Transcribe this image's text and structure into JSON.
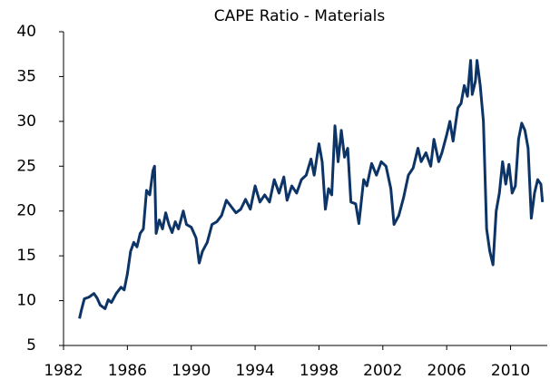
{
  "chart_data": {
    "type": "line",
    "title": "CAPE Ratio - Materials",
    "x": [
      1983.0,
      1983.1,
      1983.3,
      1983.6,
      1983.9,
      1984.1,
      1984.3,
      1984.6,
      1984.8,
      1985.0,
      1985.3,
      1985.6,
      1985.8,
      1986.0,
      1986.2,
      1986.4,
      1986.6,
      1986.8,
      1987.0,
      1987.2,
      1987.4,
      1987.6,
      1987.7,
      1987.8,
      1988.0,
      1988.2,
      1988.4,
      1988.6,
      1988.8,
      1989.0,
      1989.2,
      1989.5,
      1989.7,
      1990.0,
      1990.3,
      1990.5,
      1990.7,
      1991.0,
      1991.3,
      1991.6,
      1991.9,
      1992.2,
      1992.5,
      1992.8,
      1993.1,
      1993.4,
      1993.7,
      1994.0,
      1994.3,
      1994.6,
      1994.9,
      1995.2,
      1995.5,
      1995.8,
      1996.0,
      1996.3,
      1996.6,
      1996.9,
      1997.2,
      1997.5,
      1997.7,
      1998.0,
      1998.2,
      1998.4,
      1998.6,
      1998.8,
      1999.0,
      1999.2,
      1999.4,
      1999.6,
      1999.8,
      2000.0,
      2000.3,
      2000.5,
      2000.8,
      2001.0,
      2001.3,
      2001.6,
      2001.9,
      2002.2,
      2002.5,
      2002.7,
      2003.0,
      2003.3,
      2003.6,
      2003.9,
      2004.2,
      2004.4,
      2004.7,
      2005.0,
      2005.2,
      2005.5,
      2005.7,
      2006.0,
      2006.2,
      2006.4,
      2006.7,
      2006.9,
      2007.1,
      2007.3,
      2007.5,
      2007.6,
      2007.8,
      2007.9,
      2008.1,
      2008.3,
      2008.5,
      2008.7,
      2008.9,
      2009.1,
      2009.3,
      2009.5,
      2009.7,
      2009.9,
      2010.1,
      2010.3,
      2010.5,
      2010.7,
      2010.9,
      2011.1,
      2011.3,
      2011.5,
      2011.7,
      2011.9,
      2012.0
    ],
    "series": [
      {
        "color": "#0d3466",
        "values": [
          8.0,
          8.8,
          10.2,
          10.4,
          10.8,
          10.3,
          9.5,
          9.1,
          10.1,
          9.8,
          10.8,
          11.5,
          11.2,
          13.0,
          15.5,
          16.5,
          16.0,
          17.5,
          18.0,
          22.3,
          21.8,
          24.5,
          25.0,
          17.5,
          19.0,
          18.0,
          19.8,
          18.5,
          17.6,
          18.8,
          18.0,
          20.0,
          18.5,
          18.2,
          17.0,
          14.2,
          15.5,
          16.5,
          18.5,
          18.8,
          19.5,
          21.2,
          20.5,
          19.8,
          20.2,
          21.3,
          20.2,
          22.8,
          21.0,
          21.8,
          21.0,
          23.5,
          22.0,
          23.8,
          21.2,
          22.8,
          22.0,
          23.5,
          24.0,
          25.8,
          24.0,
          27.5,
          25.5,
          20.2,
          22.5,
          21.8,
          29.5,
          25.5,
          29.0,
          26.0,
          27.0,
          21.0,
          20.8,
          18.6,
          23.5,
          22.8,
          25.3,
          24.0,
          25.5,
          25.0,
          22.5,
          18.5,
          19.5,
          21.5,
          24.0,
          24.8,
          27.0,
          25.5,
          26.5,
          25.0,
          28.0,
          25.5,
          26.5,
          28.5,
          30.0,
          27.8,
          31.5,
          32.0,
          34.0,
          32.8,
          36.8,
          33.0,
          34.5,
          36.8,
          34.0,
          30.0,
          18.0,
          15.5,
          14.0,
          20.0,
          22.0,
          25.5,
          23.0,
          25.2,
          22.0,
          22.8,
          28.0,
          29.8,
          29.0,
          27.0,
          19.2,
          22.0,
          23.5,
          23.0,
          21.0
        ]
      }
    ],
    "xlim": [
      1982,
      2012.3
    ],
    "xticks": [
      1982,
      1986,
      1990,
      1994,
      1998,
      2002,
      2006,
      2010
    ],
    "ylim": [
      5,
      40
    ],
    "yticks": [
      5,
      10,
      15,
      20,
      25,
      30,
      35,
      40
    ]
  }
}
